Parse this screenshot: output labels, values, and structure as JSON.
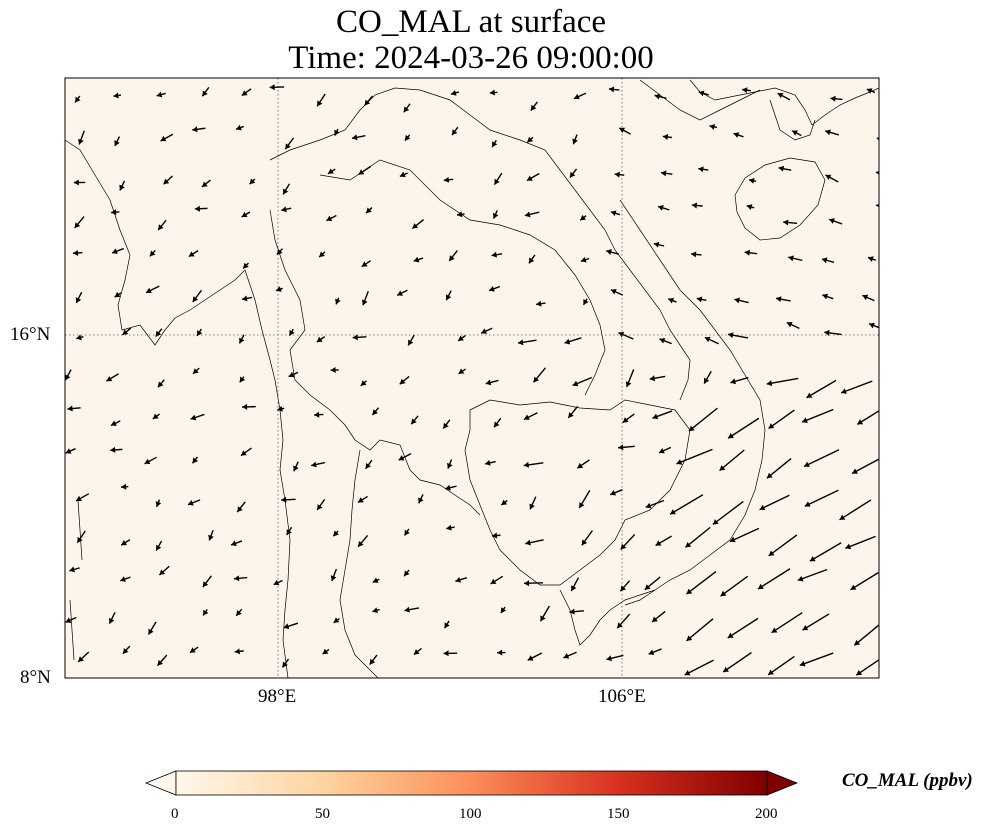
{
  "title": {
    "line1": "CO_MAL at surface",
    "line2": "Time: 2024-03-26 09:00:00"
  },
  "map": {
    "background_color": "#fdf5eb",
    "coastline_color": "#000000",
    "gridline_style": "dotted",
    "lat_ticks": [
      "16°N",
      "8°N"
    ],
    "lon_ticks": [
      "98°E",
      "106°E"
    ]
  },
  "colorbar": {
    "title": "CO_MAL (ppbv)",
    "ticks": [
      "0",
      "50",
      "100",
      "150",
      "200"
    ],
    "colormap": "OrRd",
    "colors": [
      "#fff7ec",
      "#fdd49e",
      "#fc8d59",
      "#d7301f",
      "#7f0000"
    ],
    "extend": "both"
  },
  "wind_vectors": {
    "color": "#000000",
    "note_visible": false
  }
}
